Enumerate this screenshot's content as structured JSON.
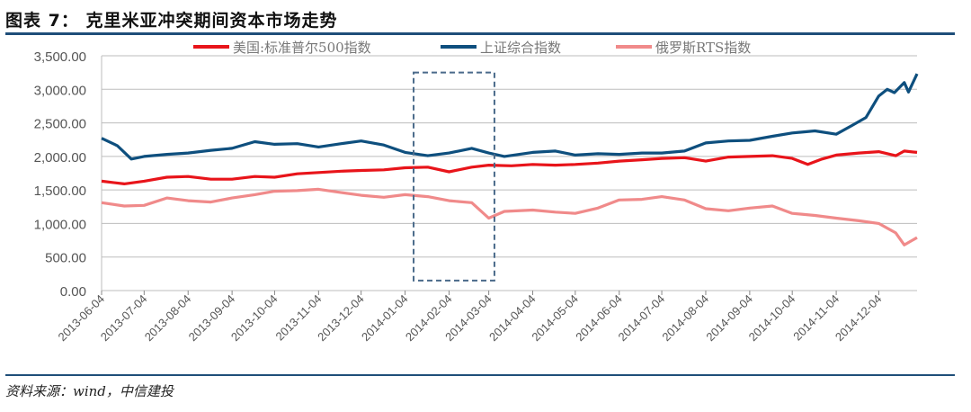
{
  "header": {
    "title": "图表 7：   克里米亚冲突期间资本市场走势"
  },
  "footer": {
    "source": "资料来源：wind，中信建投"
  },
  "chart_data": {
    "type": "line",
    "title": "",
    "xlabel": "",
    "ylabel": "",
    "ylim": [
      0,
      3500
    ],
    "yticks": [
      "0.00",
      "500.00",
      "1,000.00",
      "1,500.00",
      "2,000.00",
      "2,500.00",
      "3,000.00",
      "3,500.00"
    ],
    "xticks": [
      "2013-06-04",
      "2013-07-04",
      "2013-08-04",
      "2013-09-04",
      "2013-10-04",
      "2013-11-04",
      "2013-12-04",
      "2014-01-04",
      "2014-02-04",
      "2014-03-04",
      "2014-04-04",
      "2014-05-04",
      "2014-06-04",
      "2014-07-04",
      "2014-08-04",
      "2014-09-04",
      "2014-10-04",
      "2014-11-04",
      "2014-12-04"
    ],
    "xlim": [
      "2013-06-04",
      "2014-12-31"
    ],
    "grid": true,
    "legend": "top",
    "highlight": {
      "x": [
        "2014-01-10",
        "2014-03-08"
      ],
      "y": [
        150,
        3250
      ],
      "style": "dashed",
      "color": "#4a6a8a"
    },
    "series": [
      {
        "name": "美国:标准普尔500指数",
        "color": "#e8141a",
        "x": [
          "2013-06-04",
          "2013-06-20",
          "2013-07-04",
          "2013-07-20",
          "2013-08-04",
          "2013-08-20",
          "2013-09-04",
          "2013-09-20",
          "2013-10-04",
          "2013-10-20",
          "2013-11-04",
          "2013-11-20",
          "2013-12-04",
          "2013-12-20",
          "2014-01-04",
          "2014-01-20",
          "2014-02-04",
          "2014-02-20",
          "2014-03-04",
          "2014-03-20",
          "2014-04-04",
          "2014-04-20",
          "2014-05-04",
          "2014-05-20",
          "2014-06-04",
          "2014-06-20",
          "2014-07-04",
          "2014-07-20",
          "2014-08-04",
          "2014-08-20",
          "2014-09-04",
          "2014-09-20",
          "2014-10-04",
          "2014-10-15",
          "2014-10-25",
          "2014-11-04",
          "2014-11-20",
          "2014-12-04",
          "2014-12-16",
          "2014-12-22",
          "2014-12-31"
        ],
        "y": [
          1630,
          1590,
          1630,
          1690,
          1700,
          1660,
          1660,
          1700,
          1690,
          1740,
          1760,
          1780,
          1790,
          1800,
          1830,
          1840,
          1770,
          1840,
          1870,
          1860,
          1880,
          1870,
          1880,
          1900,
          1930,
          1950,
          1970,
          1980,
          1930,
          1990,
          2000,
          2010,
          1970,
          1880,
          1960,
          2020,
          2050,
          2070,
          2010,
          2080,
          2060
        ]
      },
      {
        "name": "上证综合指数",
        "color": "#0e4f7e",
        "x": [
          "2013-06-04",
          "2013-06-15",
          "2013-06-25",
          "2013-07-04",
          "2013-07-20",
          "2013-08-04",
          "2013-08-20",
          "2013-09-04",
          "2013-09-20",
          "2013-10-04",
          "2013-10-20",
          "2013-11-04",
          "2013-11-20",
          "2013-12-04",
          "2013-12-20",
          "2014-01-04",
          "2014-01-20",
          "2014-02-04",
          "2014-02-20",
          "2014-03-04",
          "2014-03-15",
          "2014-04-04",
          "2014-04-20",
          "2014-05-04",
          "2014-05-20",
          "2014-06-04",
          "2014-06-20",
          "2014-07-04",
          "2014-07-20",
          "2014-08-04",
          "2014-08-20",
          "2014-09-04",
          "2014-09-20",
          "2014-10-04",
          "2014-10-20",
          "2014-11-04",
          "2014-11-15",
          "2014-11-25",
          "2014-12-04",
          "2014-12-10",
          "2014-12-15",
          "2014-12-22",
          "2014-12-25",
          "2014-12-31"
        ],
        "y": [
          2270,
          2160,
          1960,
          2000,
          2030,
          2050,
          2090,
          2120,
          2220,
          2180,
          2190,
          2140,
          2190,
          2230,
          2170,
          2060,
          2010,
          2050,
          2120,
          2050,
          2000,
          2060,
          2080,
          2020,
          2040,
          2030,
          2050,
          2050,
          2080,
          2200,
          2230,
          2240,
          2300,
          2350,
          2380,
          2330,
          2460,
          2580,
          2900,
          3000,
          2950,
          3100,
          2960,
          3230
        ]
      },
      {
        "name": "俄罗斯RTS指数",
        "color": "#f08a8a",
        "x": [
          "2013-06-04",
          "2013-06-20",
          "2013-07-04",
          "2013-07-20",
          "2013-08-04",
          "2013-08-20",
          "2013-09-04",
          "2013-09-20",
          "2013-10-04",
          "2013-10-20",
          "2013-11-04",
          "2013-11-20",
          "2013-12-04",
          "2013-12-20",
          "2014-01-04",
          "2014-01-20",
          "2014-02-04",
          "2014-02-20",
          "2014-03-04",
          "2014-03-15",
          "2014-04-04",
          "2014-04-20",
          "2014-05-04",
          "2014-05-20",
          "2014-06-04",
          "2014-06-20",
          "2014-07-04",
          "2014-07-20",
          "2014-08-04",
          "2014-08-20",
          "2014-09-04",
          "2014-09-20",
          "2014-10-04",
          "2014-10-20",
          "2014-11-04",
          "2014-11-20",
          "2014-12-04",
          "2014-12-16",
          "2014-12-22",
          "2014-12-31"
        ],
        "y": [
          1310,
          1260,
          1270,
          1380,
          1340,
          1320,
          1380,
          1430,
          1480,
          1490,
          1510,
          1460,
          1420,
          1390,
          1430,
          1400,
          1340,
          1310,
          1080,
          1180,
          1200,
          1170,
          1150,
          1230,
          1350,
          1360,
          1400,
          1350,
          1220,
          1190,
          1230,
          1260,
          1150,
          1120,
          1080,
          1040,
          1000,
          860,
          680,
          790
        ]
      }
    ]
  }
}
